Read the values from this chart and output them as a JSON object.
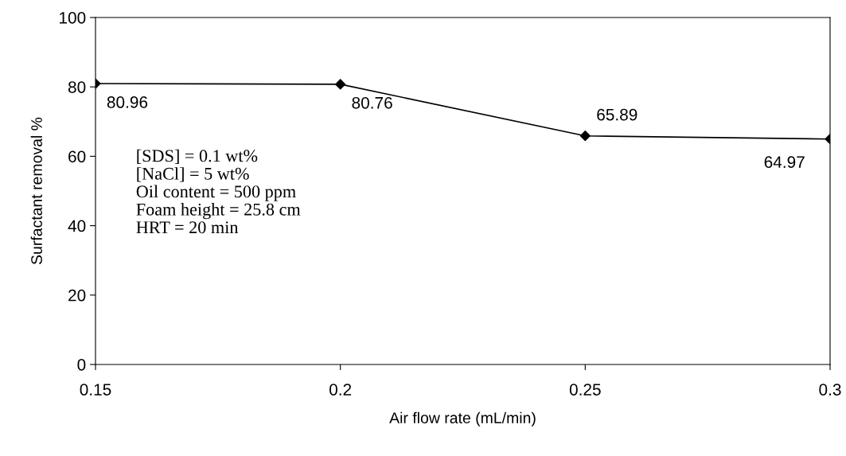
{
  "chart_data": {
    "type": "line",
    "xlabel": "Air flow rate (mL/min)",
    "ylabel": "Surfactant removal %",
    "x": [
      0.15,
      0.2,
      0.25,
      0.3
    ],
    "series": [
      {
        "color": "#000000",
        "values": [
          80.96,
          80.76,
          65.89,
          64.97
        ]
      }
    ],
    "xlim": [
      0.15,
      0.3
    ],
    "xticks": [
      0.15,
      0.2,
      0.25,
      0.3
    ],
    "ylim": [
      0,
      100
    ],
    "yticks": [
      0,
      20,
      40,
      60,
      80,
      100
    ],
    "marker": "diamond",
    "line_style": "solid",
    "grid": false,
    "data_labels": true,
    "annotations": [
      "[SDS] = 0.1 wt%",
      "[NaCl] = 5 wt%",
      "Oil content = 500 ppm",
      "Foam height = 25.8 cm",
      "HRT = 20 min"
    ]
  }
}
